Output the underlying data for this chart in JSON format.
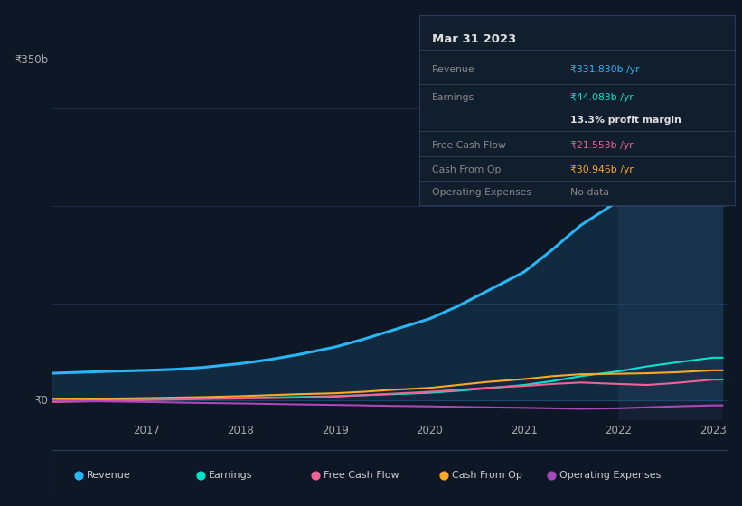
{
  "bg_color": "#0e1726",
  "plot_bg_color": "#0e1726",
  "grid_color": "#1e3050",
  "highlight_bg": "#162035",
  "years": [
    2016.0,
    2016.3,
    2016.6,
    2017.0,
    2017.3,
    2017.6,
    2018.0,
    2018.3,
    2018.6,
    2019.0,
    2019.3,
    2019.6,
    2020.0,
    2020.3,
    2020.6,
    2021.0,
    2021.3,
    2021.6,
    2022.0,
    2022.3,
    2022.6,
    2023.0,
    2023.1
  ],
  "revenue": [
    28,
    29,
    30,
    31,
    32,
    34,
    38,
    42,
    47,
    55,
    63,
    72,
    84,
    97,
    112,
    132,
    155,
    180,
    205,
    240,
    285,
    332,
    332
  ],
  "earnings": [
    0.5,
    0.8,
    1.0,
    1.2,
    1.5,
    2.0,
    2.5,
    3.0,
    3.5,
    4.5,
    5.5,
    6.5,
    8.0,
    10.0,
    12.5,
    16.0,
    20.0,
    25.0,
    30.0,
    35.0,
    39.0,
    44.0,
    44.0
  ],
  "free_cash_flow": [
    -1.5,
    -1.0,
    -0.5,
    0.5,
    1.0,
    1.5,
    2.0,
    2.5,
    3.0,
    4.0,
    5.5,
    7.0,
    9.0,
    11.0,
    13.0,
    15.0,
    17.0,
    18.5,
    17.0,
    16.0,
    18.0,
    21.5,
    21.5
  ],
  "cash_from_op": [
    1.0,
    1.5,
    2.0,
    2.5,
    3.0,
    3.5,
    4.5,
    5.5,
    6.5,
    7.5,
    9.0,
    11.0,
    13.0,
    16.0,
    19.0,
    22.0,
    25.0,
    27.0,
    27.5,
    28.0,
    29.0,
    31.0,
    31.0
  ],
  "op_expenses": [
    0.0,
    -0.5,
    -1.0,
    -1.5,
    -2.0,
    -2.5,
    -3.0,
    -3.5,
    -4.0,
    -4.5,
    -5.0,
    -5.5,
    -6.0,
    -6.5,
    -7.0,
    -7.5,
    -8.0,
    -8.5,
    -8.0,
    -7.0,
    -6.0,
    -5.0,
    -5.0
  ],
  "revenue_color": "#29b6f6",
  "earnings_color": "#00e5cc",
  "fcf_color": "#f06292",
  "cashop_color": "#ffa726",
  "opex_color": "#ab47bc",
  "highlight_start": 2022.0,
  "highlight_end": 2023.1,
  "x_ticks": [
    2017.0,
    2018.0,
    2019.0,
    2020.0,
    2021.0,
    2022.0,
    2023.0
  ],
  "x_tick_labels": [
    "2017",
    "2018",
    "2019",
    "2020",
    "2021",
    "2022",
    "2023"
  ],
  "y_label_350": "₹350b",
  "y_label_0": "₹0",
  "ylim_min": -20,
  "ylim_max": 375,
  "xlim_min": 2016.0,
  "xlim_max": 2023.15,
  "tooltip_title": "Mar 31 2023",
  "tooltip_revenue_label": "Revenue",
  "tooltip_revenue_value": "₹331.830b /yr",
  "tooltip_earnings_label": "Earnings",
  "tooltip_earnings_value": "₹44.083b /yr",
  "tooltip_margin": "13.3% profit margin",
  "tooltip_fcf_label": "Free Cash Flow",
  "tooltip_fcf_value": "₹21.553b /yr",
  "tooltip_cashop_label": "Cash From Op",
  "tooltip_cashop_value": "₹30.946b /yr",
  "tooltip_opex_label": "Operating Expenses",
  "tooltip_opex_value": "No data",
  "legend_labels": [
    "Revenue",
    "Earnings",
    "Free Cash Flow",
    "Cash From Op",
    "Operating Expenses"
  ],
  "legend_colors": [
    "#29b6f6",
    "#00e5cc",
    "#f06292",
    "#ffa726",
    "#ab47bc"
  ],
  "tooltip_bg": "#111e2e",
  "tooltip_border": "#2a3a55"
}
